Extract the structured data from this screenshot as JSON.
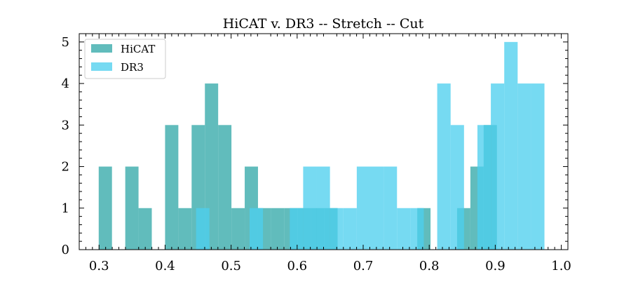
{
  "chart_data": {
    "type": "histogram",
    "title": "HiCAT v. DR3 -- Stretch -- Cut",
    "xlabel": "",
    "ylabel": "",
    "xlim": [
      0.27,
      1.01
    ],
    "ylim": [
      0,
      5.2
    ],
    "x_ticks": [
      "0.3",
      "0.4",
      "0.5",
      "0.6",
      "0.7",
      "0.8",
      "0.9",
      "1.0"
    ],
    "y_ticks": [
      "0",
      "1",
      "2",
      "3",
      "4",
      "5"
    ],
    "legend_position": "top-left",
    "grid": false,
    "series": [
      {
        "name": "HiCAT",
        "color": "#3aabab",
        "alpha": 0.8,
        "bins": [
          {
            "x0": 0.2995,
            "x1": 0.3196,
            "count": 2
          },
          {
            "x0": 0.3397,
            "x1": 0.3598,
            "count": 2
          },
          {
            "x0": 0.3598,
            "x1": 0.3799,
            "count": 1
          },
          {
            "x0": 0.4,
            "x1": 0.4201,
            "count": 3
          },
          {
            "x0": 0.4201,
            "x1": 0.4402,
            "count": 1
          },
          {
            "x0": 0.4402,
            "x1": 0.4603,
            "count": 3
          },
          {
            "x0": 0.4603,
            "x1": 0.4804,
            "count": 4
          },
          {
            "x0": 0.4804,
            "x1": 0.5005,
            "count": 3
          },
          {
            "x0": 0.5005,
            "x1": 0.5206,
            "count": 1
          },
          {
            "x0": 0.5206,
            "x1": 0.5407,
            "count": 2
          },
          {
            "x0": 0.5407,
            "x1": 0.5608,
            "count": 1
          },
          {
            "x0": 0.5608,
            "x1": 0.5809,
            "count": 1
          },
          {
            "x0": 0.5809,
            "x1": 0.601,
            "count": 1
          },
          {
            "x0": 0.601,
            "x1": 0.6211,
            "count": 1
          },
          {
            "x0": 0.6211,
            "x1": 0.6412,
            "count": 1
          },
          {
            "x0": 0.6412,
            "x1": 0.6613,
            "count": 1
          },
          {
            "x0": 0.7819,
            "x1": 0.802,
            "count": 1
          },
          {
            "x0": 0.8422,
            "x1": 0.8623,
            "count": 1
          },
          {
            "x0": 0.8623,
            "x1": 0.8824,
            "count": 2
          },
          {
            "x0": 0.8824,
            "x1": 0.9025,
            "count": 3
          }
        ]
      },
      {
        "name": "DR3",
        "color": "#4dcfee",
        "alpha": 0.77,
        "bins": [
          {
            "x0": 0.4469,
            "x1": 0.4672,
            "count": 1
          },
          {
            "x0": 0.528,
            "x1": 0.5483,
            "count": 1
          },
          {
            "x0": 0.5888,
            "x1": 0.6091,
            "count": 1
          },
          {
            "x0": 0.6091,
            "x1": 0.6294,
            "count": 2
          },
          {
            "x0": 0.6294,
            "x1": 0.6497,
            "count": 2
          },
          {
            "x0": 0.6497,
            "x1": 0.67,
            "count": 1
          },
          {
            "x0": 0.67,
            "x1": 0.6903,
            "count": 1
          },
          {
            "x0": 0.6903,
            "x1": 0.7106,
            "count": 2
          },
          {
            "x0": 0.7106,
            "x1": 0.7309,
            "count": 2
          },
          {
            "x0": 0.7309,
            "x1": 0.7512,
            "count": 2
          },
          {
            "x0": 0.7512,
            "x1": 0.7715,
            "count": 1
          },
          {
            "x0": 0.7715,
            "x1": 0.7918,
            "count": 1
          },
          {
            "x0": 0.8121,
            "x1": 0.8324,
            "count": 4
          },
          {
            "x0": 0.8324,
            "x1": 0.8527,
            "count": 3
          },
          {
            "x0": 0.873,
            "x1": 0.8933,
            "count": 3
          },
          {
            "x0": 0.8933,
            "x1": 0.9136,
            "count": 4
          },
          {
            "x0": 0.9136,
            "x1": 0.9339,
            "count": 5
          },
          {
            "x0": 0.9339,
            "x1": 0.9542,
            "count": 4
          },
          {
            "x0": 0.9542,
            "x1": 0.9745,
            "count": 4
          }
        ]
      }
    ]
  }
}
